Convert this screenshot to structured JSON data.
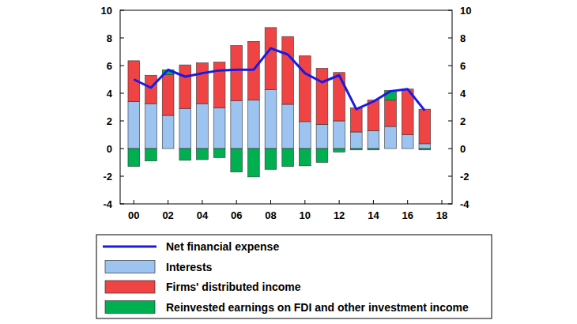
{
  "chart_data": {
    "type": "bar",
    "stacked": true,
    "legend": "bottom",
    "grid": false,
    "x": [
      2000,
      2001,
      2002,
      2003,
      2004,
      2005,
      2006,
      2007,
      2008,
      2009,
      2010,
      2011,
      2012,
      2013,
      2014,
      2015,
      2016,
      2017
    ],
    "xlim": [
      1999.2,
      2018.6
    ],
    "xticks": [
      {
        "value": 2000,
        "label": "00"
      },
      {
        "value": 2002,
        "label": "02"
      },
      {
        "value": 2004,
        "label": "04"
      },
      {
        "value": 2006,
        "label": "06"
      },
      {
        "value": 2008,
        "label": "08"
      },
      {
        "value": 2010,
        "label": "10"
      },
      {
        "value": 2012,
        "label": "12"
      },
      {
        "value": 2014,
        "label": "14"
      },
      {
        "value": 2016,
        "label": "16"
      },
      {
        "value": 2018,
        "label": "18"
      }
    ],
    "ylim": [
      -4,
      10
    ],
    "yticks": [
      -4,
      -2,
      0,
      2,
      4,
      6,
      8,
      10
    ],
    "y2lim": [
      -4,
      10
    ],
    "y2ticks": [
      -4,
      -2,
      0,
      2,
      4,
      6,
      8,
      10
    ],
    "series": [
      {
        "name": "Interests",
        "type": "bar",
        "color": "#9dc3f0",
        "values": [
          3.4,
          3.25,
          2.4,
          2.9,
          3.25,
          2.95,
          3.45,
          3.5,
          4.25,
          3.2,
          1.95,
          1.75,
          2.0,
          1.2,
          1.3,
          1.6,
          1.0,
          0.35
        ]
      },
      {
        "name": "Firms' distributed income",
        "type": "bar",
        "color": "#f04444",
        "values": [
          2.95,
          2.05,
          2.95,
          3.15,
          2.95,
          3.3,
          4.0,
          4.25,
          4.5,
          4.9,
          4.75,
          4.05,
          3.5,
          1.75,
          2.2,
          1.9,
          3.3,
          2.5
        ]
      },
      {
        "name": "Reinvested earnings on FDI and other investment income",
        "type": "bar",
        "color": "#00b050",
        "values": [
          -1.3,
          -0.9,
          0.35,
          -0.85,
          -0.8,
          -0.65,
          -1.7,
          -2.05,
          -1.5,
          -1.3,
          -1.25,
          -1.0,
          -0.25,
          -0.1,
          -0.1,
          0.7,
          0,
          -0.1
        ]
      },
      {
        "name": "Net financial expense",
        "type": "line",
        "color": "#1a1ae6",
        "values": [
          5.0,
          4.4,
          5.7,
          5.2,
          5.45,
          5.65,
          5.7,
          5.7,
          7.25,
          6.8,
          5.45,
          4.8,
          5.3,
          2.85,
          3.4,
          4.15,
          4.3,
          2.75
        ]
      }
    ]
  }
}
